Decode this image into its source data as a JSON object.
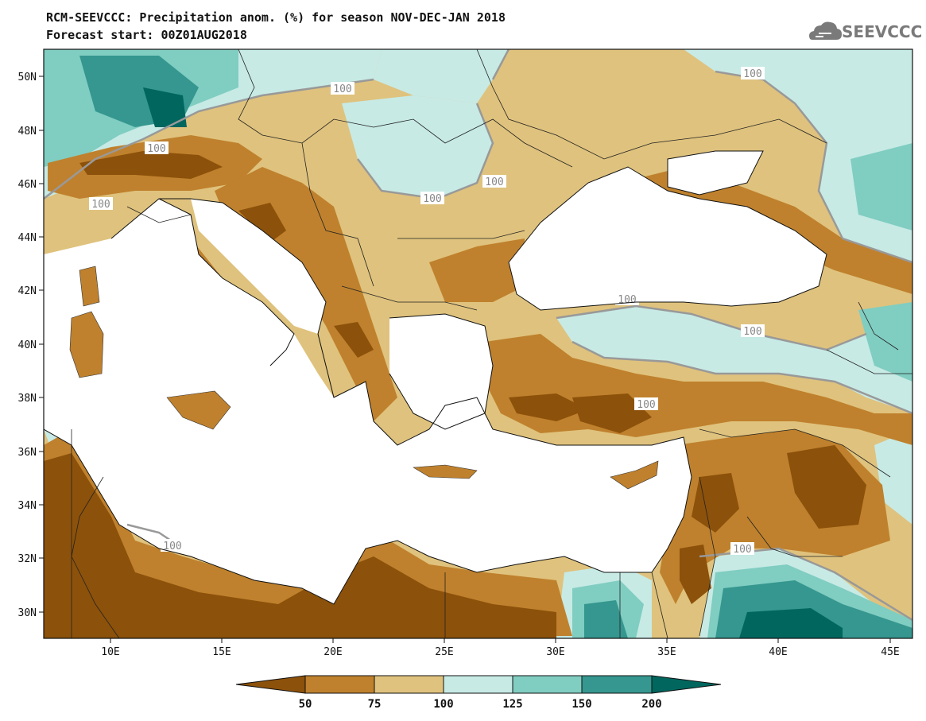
{
  "title_line1": "RCM-SEEVCCC: Precipitation anom. (%) for season NOV-DEC-JAN 2018",
  "title_line2": "Forecast start: 00Z01AUG2018",
  "logo_text": "SEEVCCC",
  "logo_icon": "cloud-icon",
  "map": {
    "lon_range": [
      7,
      46
    ],
    "lat_range": [
      29,
      51
    ],
    "lat_ticks": [
      "50N",
      "48N",
      "46N",
      "44N",
      "42N",
      "40N",
      "38N",
      "36N",
      "34N",
      "32N",
      "30N"
    ],
    "lon_ticks": [
      "10E",
      "15E",
      "20E",
      "25E",
      "30E",
      "35E",
      "40E",
      "45E"
    ],
    "contour_label": "100",
    "colors": {
      "below_50": "#8c510a",
      "50_75": "#bf812d",
      "75_100": "#dfc27d",
      "100_125": "#c7eae5",
      "125_150": "#80cdc1",
      "150_200": "#35978f",
      "above_200": "#01665e",
      "sea": "#ffffff",
      "contour": "#999999"
    }
  },
  "colorbar": {
    "levels": [
      "50",
      "75",
      "100",
      "125",
      "150",
      "200"
    ],
    "colors": [
      "#8c510a",
      "#bf812d",
      "#dfc27d",
      "#c7eae5",
      "#80cdc1",
      "#35978f",
      "#01665e"
    ]
  }
}
